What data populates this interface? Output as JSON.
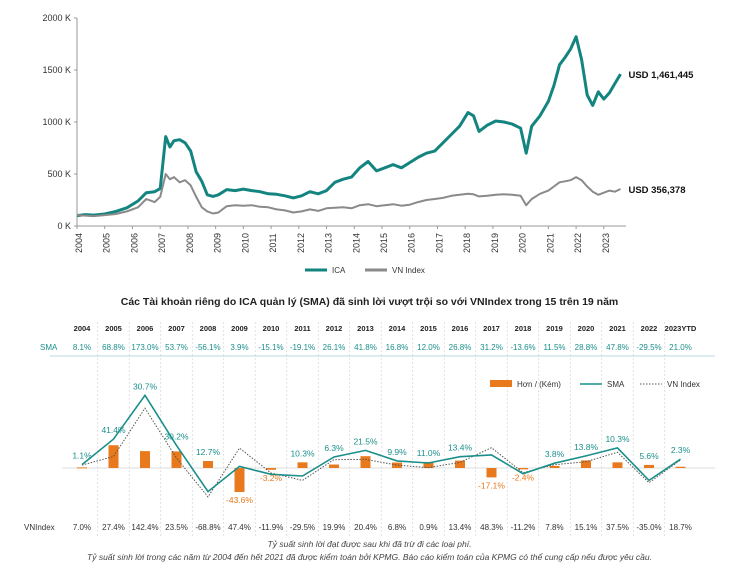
{
  "chart_data": [
    {
      "type": "line",
      "title": "",
      "y_ticks": [
        "0 K",
        "500 K",
        "1000 K",
        "1500 K",
        "2000 K"
      ],
      "ylim": [
        0,
        2000
      ],
      "x_ticks": [
        "2004",
        "2005",
        "2006",
        "2007",
        "2008",
        "2009",
        "2010",
        "2011",
        "2012",
        "2013",
        "2014",
        "2015",
        "2016",
        "2017",
        "2018",
        "2019",
        "2020",
        "2021",
        "2022",
        "2023"
      ],
      "xlim": [
        2004,
        2023.8
      ],
      "grid": false,
      "legend": "bottom",
      "series": [
        {
          "name": "ICA",
          "color": "#13847f",
          "end_label": "USD 1,461,445",
          "points": [
            [
              2004.0,
              100
            ],
            [
              2004.3,
              110
            ],
            [
              2004.6,
              105
            ],
            [
              2005.0,
              115
            ],
            [
              2005.4,
              140
            ],
            [
              2005.8,
              175
            ],
            [
              2006.2,
              240
            ],
            [
              2006.5,
              320
            ],
            [
              2006.8,
              330
            ],
            [
              2007.0,
              360
            ],
            [
              2007.2,
              860
            ],
            [
              2007.35,
              760
            ],
            [
              2007.5,
              820
            ],
            [
              2007.7,
              830
            ],
            [
              2007.9,
              800
            ],
            [
              2008.1,
              720
            ],
            [
              2008.3,
              520
            ],
            [
              2008.5,
              430
            ],
            [
              2008.7,
              300
            ],
            [
              2008.9,
              285
            ],
            [
              2009.1,
              300
            ],
            [
              2009.4,
              350
            ],
            [
              2009.7,
              340
            ],
            [
              2010.0,
              355
            ],
            [
              2010.3,
              340
            ],
            [
              2010.6,
              330
            ],
            [
              2010.9,
              310
            ],
            [
              2011.2,
              305
            ],
            [
              2011.5,
              290
            ],
            [
              2011.8,
              270
            ],
            [
              2012.1,
              290
            ],
            [
              2012.4,
              330
            ],
            [
              2012.7,
              310
            ],
            [
              2013.0,
              340
            ],
            [
              2013.3,
              420
            ],
            [
              2013.6,
              450
            ],
            [
              2013.9,
              470
            ],
            [
              2014.2,
              560
            ],
            [
              2014.5,
              620
            ],
            [
              2014.8,
              530
            ],
            [
              2015.1,
              560
            ],
            [
              2015.4,
              590
            ],
            [
              2015.7,
              560
            ],
            [
              2016.0,
              610
            ],
            [
              2016.3,
              660
            ],
            [
              2016.6,
              700
            ],
            [
              2016.9,
              720
            ],
            [
              2017.2,
              800
            ],
            [
              2017.5,
              880
            ],
            [
              2017.8,
              960
            ],
            [
              2018.1,
              1090
            ],
            [
              2018.3,
              1060
            ],
            [
              2018.5,
              910
            ],
            [
              2018.8,
              970
            ],
            [
              2019.1,
              1010
            ],
            [
              2019.4,
              1000
            ],
            [
              2019.7,
              980
            ],
            [
              2020.0,
              940
            ],
            [
              2020.2,
              700
            ],
            [
              2020.4,
              960
            ],
            [
              2020.7,
              1060
            ],
            [
              2021.0,
              1200
            ],
            [
              2021.2,
              1350
            ],
            [
              2021.4,
              1550
            ],
            [
              2021.6,
              1620
            ],
            [
              2021.8,
              1700
            ],
            [
              2022.0,
              1820
            ],
            [
              2022.2,
              1600
            ],
            [
              2022.4,
              1260
            ],
            [
              2022.6,
              1160
            ],
            [
              2022.8,
              1290
            ],
            [
              2023.0,
              1220
            ],
            [
              2023.2,
              1280
            ],
            [
              2023.4,
              1370
            ],
            [
              2023.6,
              1461
            ]
          ]
        },
        {
          "name": "VN Index",
          "color": "#8a8a8a",
          "end_label": "USD 356,378",
          "points": [
            [
              2004.0,
              105
            ],
            [
              2004.3,
              100
            ],
            [
              2004.6,
              95
            ],
            [
              2005.0,
              105
            ],
            [
              2005.4,
              115
            ],
            [
              2005.8,
              140
            ],
            [
              2006.2,
              180
            ],
            [
              2006.5,
              260
            ],
            [
              2006.8,
              230
            ],
            [
              2007.0,
              280
            ],
            [
              2007.2,
              500
            ],
            [
              2007.35,
              450
            ],
            [
              2007.5,
              470
            ],
            [
              2007.7,
              420
            ],
            [
              2007.9,
              440
            ],
            [
              2008.1,
              390
            ],
            [
              2008.3,
              280
            ],
            [
              2008.5,
              180
            ],
            [
              2008.7,
              140
            ],
            [
              2008.9,
              120
            ],
            [
              2009.1,
              130
            ],
            [
              2009.4,
              190
            ],
            [
              2009.7,
              200
            ],
            [
              2010.0,
              195
            ],
            [
              2010.3,
              200
            ],
            [
              2010.6,
              185
            ],
            [
              2010.9,
              180
            ],
            [
              2011.2,
              160
            ],
            [
              2011.5,
              150
            ],
            [
              2011.8,
              130
            ],
            [
              2012.1,
              140
            ],
            [
              2012.4,
              160
            ],
            [
              2012.7,
              145
            ],
            [
              2013.0,
              170
            ],
            [
              2013.3,
              175
            ],
            [
              2013.6,
              180
            ],
            [
              2013.9,
              170
            ],
            [
              2014.2,
              200
            ],
            [
              2014.5,
              210
            ],
            [
              2014.8,
              190
            ],
            [
              2015.1,
              200
            ],
            [
              2015.4,
              210
            ],
            [
              2015.7,
              195
            ],
            [
              2016.0,
              205
            ],
            [
              2016.3,
              230
            ],
            [
              2016.6,
              250
            ],
            [
              2016.9,
              260
            ],
            [
              2017.2,
              270
            ],
            [
              2017.5,
              290
            ],
            [
              2017.8,
              300
            ],
            [
              2018.1,
              310
            ],
            [
              2018.3,
              305
            ],
            [
              2018.5,
              285
            ],
            [
              2018.8,
              290
            ],
            [
              2019.1,
              300
            ],
            [
              2019.4,
              305
            ],
            [
              2019.7,
              300
            ],
            [
              2020.0,
              290
            ],
            [
              2020.2,
              200
            ],
            [
              2020.4,
              260
            ],
            [
              2020.7,
              310
            ],
            [
              2021.0,
              340
            ],
            [
              2021.2,
              380
            ],
            [
              2021.4,
              420
            ],
            [
              2021.6,
              430
            ],
            [
              2021.8,
              440
            ],
            [
              2022.0,
              470
            ],
            [
              2022.2,
              440
            ],
            [
              2022.4,
              380
            ],
            [
              2022.6,
              330
            ],
            [
              2022.8,
              300
            ],
            [
              2023.0,
              320
            ],
            [
              2023.2,
              340
            ],
            [
              2023.4,
              330
            ],
            [
              2023.6,
              356
            ]
          ]
        }
      ]
    },
    {
      "type": "bar",
      "title": "Các Tài khoản riêng do ICA quản lý (SMA) đã sinh lời vượt trội so với VNIndex trong 15 trên 19 năm",
      "categories": [
        "2004",
        "2005",
        "2006",
        "2007",
        "2008",
        "2009",
        "2010",
        "2011",
        "2012",
        "2013",
        "2014",
        "2015",
        "2016",
        "2017",
        "2018",
        "2019",
        "2020",
        "2021",
        "2022",
        "2023YTD"
      ],
      "row_labels": {
        "sma": "SMA",
        "vn": "VNIndex"
      },
      "sma_text": [
        "8.1%",
        "68.8%",
        "173.0%",
        "53.7%",
        "-56.1%",
        "3.9%",
        "-15.1%",
        "-19.1%",
        "26.1%",
        "41.8%",
        "16.8%",
        "12.0%",
        "26.8%",
        "31.2%",
        "-13.6%",
        "11.5%",
        "28.8%",
        "47.8%",
        "-29.5%",
        "21.0%"
      ],
      "vn_text": [
        "7.0%",
        "27.4%",
        "142.4%",
        "23.5%",
        "-68.8%",
        "47.4%",
        "-11.9%",
        "-29.5%",
        "19.9%",
        "20.4%",
        "6.8%",
        "0.9%",
        "13.4%",
        "48.3%",
        "-11.2%",
        "7.8%",
        "15.1%",
        "37.5%",
        "-35.0%",
        "18.7%"
      ],
      "sma": [
        8.1,
        68.8,
        173.0,
        53.7,
        -56.1,
        3.9,
        -15.1,
        -19.1,
        26.1,
        41.8,
        16.8,
        12.0,
        26.8,
        31.2,
        -13.6,
        11.5,
        28.8,
        47.8,
        -29.5,
        21.0
      ],
      "vnindex": [
        7.0,
        27.4,
        142.4,
        23.5,
        -68.8,
        47.4,
        -11.9,
        -29.5,
        19.9,
        20.4,
        6.8,
        0.9,
        13.4,
        48.3,
        -11.2,
        7.8,
        15.1,
        37.5,
        -35.0,
        18.7
      ],
      "excess": [
        1.1,
        41.4,
        30.7,
        30.2,
        12.7,
        -43.6,
        -3.2,
        10.3,
        6.3,
        21.5,
        9.9,
        11.0,
        13.4,
        -17.1,
        -2.4,
        3.8,
        13.8,
        10.3,
        5.6,
        2.3
      ],
      "excess_labels": [
        "1.1%",
        "41.4%",
        "30.7%",
        "30.2%",
        "12.7%",
        "-43.6%",
        "-3.2%",
        "10.3%",
        "6.3%",
        "21.5%",
        "9.9%",
        "11.0%",
        "13.4%",
        "-17.1%",
        "-2.4%",
        "3.8%",
        "13.8%",
        "10.3%",
        "5.6%",
        "2.3%"
      ],
      "legend": [
        "Hơn / (Kém)",
        "SMA",
        "VN Index"
      ],
      "colors": {
        "bar": "#e8791c",
        "sma": "#1a8f8a",
        "vn": "#555555"
      }
    }
  ],
  "notes": {
    "line1": "Tỷ suất sinh lời đạt được sau khi đã trừ đi các loại phí.",
    "line2": "Tỷ suất sinh lời trong các năm từ 2004 đến hết 2021 đã được kiểm toán bởi KPMG. Báo cáo kiểm toán của KPMG có thể cung cấp nếu được yêu cầu."
  }
}
